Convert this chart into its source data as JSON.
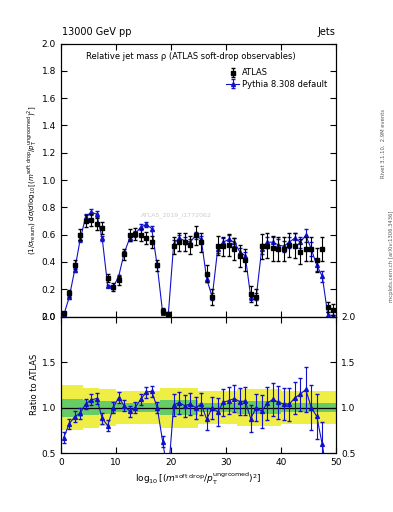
{
  "title_top": "13000 GeV pp",
  "title_right": "Jets",
  "plot_title": "Relative jet mass ρ (ATLAS soft-drop observables)",
  "right_label_top": "Rivet 3.1.10,  2.9M events",
  "right_label_bot": "mcplots.cern.ch [arXiv:1306.3436]",
  "watermark": "ATLAS_2019_I1772062",
  "legend_atlas": "ATLAS",
  "legend_pythia": "Pythia 8.308 default",
  "ylabel_ratio": "Ratio to ATLAS",
  "atlas_x": [
    0.5,
    1.5,
    2.5,
    3.5,
    4.5,
    5.5,
    6.5,
    7.5,
    8.5,
    9.5,
    10.5,
    11.5,
    12.5,
    13.5,
    14.5,
    15.5,
    16.5,
    17.5,
    18.5,
    19.5,
    20.5,
    21.5,
    22.5,
    23.5,
    24.5,
    25.5,
    26.5,
    27.5,
    28.5,
    29.5,
    30.5,
    31.5,
    32.5,
    33.5,
    34.5,
    35.5,
    36.5,
    37.5,
    38.5,
    39.5,
    40.5,
    41.5,
    42.5,
    43.5,
    44.5,
    45.5,
    46.5,
    47.5,
    48.5,
    49.5
  ],
  "atlas_y": [
    0.025,
    0.17,
    0.38,
    0.6,
    0.7,
    0.705,
    0.68,
    0.65,
    0.28,
    0.215,
    0.265,
    0.455,
    0.6,
    0.605,
    0.6,
    0.575,
    0.545,
    0.375,
    0.04,
    0.02,
    0.52,
    0.545,
    0.545,
    0.525,
    0.595,
    0.545,
    0.315,
    0.145,
    0.52,
    0.515,
    0.525,
    0.495,
    0.445,
    0.415,
    0.165,
    0.145,
    0.515,
    0.52,
    0.5,
    0.495,
    0.495,
    0.525,
    0.52,
    0.475,
    0.495,
    0.495,
    0.415,
    0.495,
    0.07,
    0.05
  ],
  "atlas_yerr": [
    0.01,
    0.025,
    0.035,
    0.04,
    0.045,
    0.045,
    0.045,
    0.045,
    0.03,
    0.03,
    0.03,
    0.04,
    0.045,
    0.045,
    0.045,
    0.045,
    0.045,
    0.04,
    0.02,
    0.01,
    0.06,
    0.065,
    0.065,
    0.065,
    0.07,
    0.07,
    0.065,
    0.06,
    0.07,
    0.07,
    0.08,
    0.08,
    0.08,
    0.08,
    0.06,
    0.06,
    0.09,
    0.09,
    0.09,
    0.09,
    0.09,
    0.09,
    0.09,
    0.09,
    0.09,
    0.09,
    0.09,
    0.09,
    0.04,
    0.04
  ],
  "pythia_x": [
    0.5,
    1.5,
    2.5,
    3.5,
    4.5,
    5.5,
    6.5,
    7.5,
    8.5,
    9.5,
    10.5,
    11.5,
    12.5,
    13.5,
    14.5,
    15.5,
    16.5,
    17.5,
    18.5,
    19.5,
    20.5,
    21.5,
    22.5,
    23.5,
    24.5,
    25.5,
    26.5,
    27.5,
    28.5,
    29.5,
    30.5,
    31.5,
    32.5,
    33.5,
    34.5,
    35.5,
    36.5,
    37.5,
    38.5,
    39.5,
    40.5,
    41.5,
    42.5,
    43.5,
    44.5,
    45.5,
    46.5,
    47.5,
    48.5,
    49.5
  ],
  "pythia_y": [
    0.01,
    0.14,
    0.34,
    0.565,
    0.73,
    0.765,
    0.75,
    0.575,
    0.225,
    0.215,
    0.295,
    0.465,
    0.575,
    0.605,
    0.655,
    0.675,
    0.645,
    0.375,
    0.025,
    0.005,
    0.535,
    0.575,
    0.555,
    0.545,
    0.595,
    0.565,
    0.275,
    0.145,
    0.495,
    0.545,
    0.565,
    0.545,
    0.475,
    0.445,
    0.145,
    0.145,
    0.495,
    0.545,
    0.545,
    0.525,
    0.515,
    0.545,
    0.575,
    0.545,
    0.595,
    0.495,
    0.375,
    0.295,
    0.015,
    0.005
  ],
  "pythia_yerr": [
    0.004,
    0.008,
    0.015,
    0.018,
    0.02,
    0.02,
    0.02,
    0.018,
    0.01,
    0.01,
    0.01,
    0.015,
    0.018,
    0.02,
    0.02,
    0.02,
    0.02,
    0.015,
    0.008,
    0.004,
    0.025,
    0.025,
    0.025,
    0.025,
    0.028,
    0.028,
    0.025,
    0.025,
    0.03,
    0.03,
    0.03,
    0.03,
    0.03,
    0.03,
    0.025,
    0.025,
    0.04,
    0.04,
    0.04,
    0.04,
    0.04,
    0.04,
    0.04,
    0.04,
    0.05,
    0.05,
    0.04,
    0.04,
    0.015,
    0.008
  ],
  "ratio_x": [
    0.5,
    1.5,
    2.5,
    3.5,
    4.5,
    5.5,
    6.5,
    7.5,
    8.5,
    9.5,
    10.5,
    11.5,
    12.5,
    13.5,
    14.5,
    15.5,
    16.5,
    17.5,
    18.5,
    19.5,
    20.5,
    21.5,
    22.5,
    23.5,
    24.5,
    25.5,
    26.5,
    27.5,
    28.5,
    29.5,
    30.5,
    31.5,
    32.5,
    33.5,
    34.5,
    35.5,
    36.5,
    37.5,
    38.5,
    39.5,
    40.5,
    41.5,
    42.5,
    43.5,
    44.5,
    45.5,
    46.5,
    47.5,
    48.5,
    49.5
  ],
  "ratio_y": [
    0.67,
    0.82,
    0.9,
    0.94,
    1.04,
    1.085,
    1.1,
    0.885,
    0.8,
    1.0,
    1.11,
    1.02,
    0.96,
    1.0,
    1.09,
    1.17,
    1.18,
    1.0,
    0.625,
    0.25,
    1.03,
    1.055,
    1.02,
    1.038,
    1.0,
    1.037,
    0.873,
    1.0,
    0.952,
    1.058,
    1.076,
    1.1,
    1.067,
    1.072,
    0.88,
    1.0,
    0.96,
    1.048,
    1.09,
    1.06,
    1.04,
    1.038,
    1.106,
    1.147,
    1.2,
    1.0,
    0.904,
    0.596,
    0.214,
    0.1
  ],
  "ratio_yerr": [
    0.06,
    0.06,
    0.06,
    0.06,
    0.06,
    0.06,
    0.06,
    0.06,
    0.06,
    0.06,
    0.06,
    0.06,
    0.06,
    0.06,
    0.06,
    0.06,
    0.06,
    0.06,
    0.06,
    0.06,
    0.12,
    0.12,
    0.12,
    0.12,
    0.12,
    0.12,
    0.12,
    0.12,
    0.15,
    0.15,
    0.15,
    0.15,
    0.15,
    0.15,
    0.15,
    0.15,
    0.18,
    0.18,
    0.18,
    0.18,
    0.18,
    0.18,
    0.18,
    0.18,
    0.25,
    0.25,
    0.25,
    0.25,
    0.25,
    0.25
  ],
  "band_x_edges": [
    0,
    2,
    4,
    7,
    10,
    14,
    18,
    20,
    25,
    28,
    32,
    36,
    40,
    44,
    48,
    50
  ],
  "yellow_lo": [
    0.75,
    0.75,
    0.78,
    0.8,
    0.82,
    0.82,
    0.78,
    0.78,
    0.82,
    0.82,
    0.8,
    0.8,
    0.82,
    0.82,
    0.82,
    0.82
  ],
  "yellow_hi": [
    1.25,
    1.25,
    1.22,
    1.2,
    1.18,
    1.18,
    1.22,
    1.22,
    1.18,
    1.18,
    1.2,
    1.2,
    1.18,
    1.18,
    1.18,
    1.18
  ],
  "green_lo": [
    0.9,
    0.9,
    0.92,
    0.93,
    0.95,
    0.95,
    0.92,
    0.92,
    0.95,
    0.95,
    0.93,
    0.93,
    0.95,
    0.95,
    0.95,
    0.95
  ],
  "green_hi": [
    1.1,
    1.1,
    1.08,
    1.07,
    1.05,
    1.05,
    1.08,
    1.08,
    1.05,
    1.05,
    1.07,
    1.07,
    1.05,
    1.05,
    1.05,
    1.05
  ],
  "xmin": 0,
  "xmax": 50,
  "ymin_main": 0,
  "ymax_main": 2.0,
  "ymin_ratio": 0.5,
  "ymax_ratio": 2.0,
  "blue_color": "#1111CC",
  "green_color": "#66CC66",
  "yellow_color": "#EEEE44",
  "xticks": [
    0,
    10,
    20,
    30,
    40,
    50
  ],
  "yticks_main": [
    0,
    0.2,
    0.4,
    0.6,
    0.8,
    1.0,
    1.2,
    1.4,
    1.6,
    1.8,
    2.0
  ],
  "yticks_ratio": [
    0.5,
    1.0,
    1.5,
    2.0
  ]
}
